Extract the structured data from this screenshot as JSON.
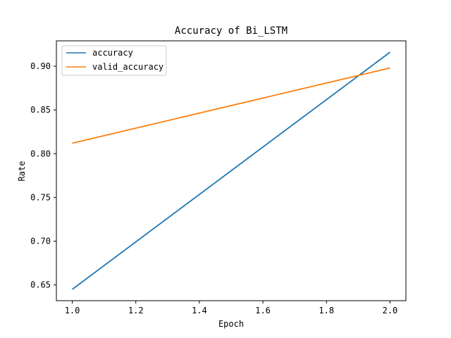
{
  "chart_data": {
    "type": "line",
    "title": "Accuracy of Bi_LSTM",
    "xlabel": "Epoch",
    "ylabel": "Rate",
    "xlim": [
      0.95,
      2.05
    ],
    "ylim": [
      0.632,
      0.929
    ],
    "xticks": [
      1.0,
      1.2,
      1.4,
      1.6,
      1.8,
      2.0
    ],
    "xtick_labels": [
      "1.0",
      "1.2",
      "1.4",
      "1.6",
      "1.8",
      "2.0"
    ],
    "yticks": [
      0.65,
      0.7,
      0.75,
      0.8,
      0.85,
      0.9
    ],
    "ytick_labels": [
      "0.65",
      "0.70",
      "0.75",
      "0.80",
      "0.85",
      "0.90"
    ],
    "grid": false,
    "legend_position": "top-left",
    "series": [
      {
        "name": "accuracy",
        "color": "#1f77b4",
        "x": [
          1.0,
          2.0
        ],
        "y": [
          0.645,
          0.916
        ]
      },
      {
        "name": "valid_accuracy",
        "color": "#ff7f0e",
        "x": [
          1.0,
          2.0
        ],
        "y": [
          0.812,
          0.898
        ]
      }
    ]
  }
}
